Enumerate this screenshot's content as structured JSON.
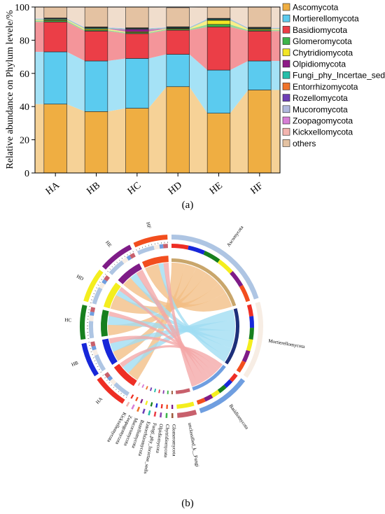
{
  "panel_a": {
    "label": "(a)"
  },
  "panel_b": {
    "label": "(b)"
  },
  "chart_data": [
    {
      "type": "bar",
      "stacked": true,
      "ylabel": "Relative  abundance on Phylum levele/%",
      "xlabel": "",
      "ylim": [
        0,
        100
      ],
      "yticks": [
        0,
        20,
        40,
        60,
        80,
        100
      ],
      "categories": [
        "HA",
        "HB",
        "HC",
        "HD",
        "HE",
        "HF"
      ],
      "legend_position": "right",
      "series": [
        {
          "name": "Ascomycota",
          "color": "#EFAE42",
          "values": [
            41.5,
            37.0,
            39.0,
            52.0,
            36.0,
            50.0
          ]
        },
        {
          "name": "Mortierellomycota",
          "color": "#5BCBEF",
          "values": [
            31.5,
            30.5,
            30.0,
            19.5,
            26.0,
            17.5
          ]
        },
        {
          "name": "Basidiomycota",
          "color": "#EB3E47",
          "values": [
            18.0,
            18.0,
            15.0,
            14.5,
            26.0,
            18.0
          ]
        },
        {
          "name": "Glomeromycota",
          "color": "#3DB54A",
          "values": [
            0.8,
            0.6,
            0.6,
            0.6,
            1.5,
            0.6
          ]
        },
        {
          "name": "Chytridiomycota",
          "color": "#F2E624",
          "values": [
            0.5,
            0.7,
            0.5,
            0.4,
            2.5,
            0.6
          ]
        },
        {
          "name": "Olpidiomycota",
          "color": "#8E1A86",
          "values": [
            0.1,
            0.2,
            1.5,
            0.2,
            0.2,
            0.2
          ]
        },
        {
          "name": "Fungi_phy_Incertae_sedis",
          "color": "#26BEA8",
          "values": [
            0.5,
            0.5,
            0.4,
            0.4,
            0.5,
            0.4
          ]
        },
        {
          "name": "Entorrhizomycota",
          "color": "#F0732A",
          "values": [
            0.1,
            0.1,
            0.1,
            0.1,
            0.1,
            0.1
          ]
        },
        {
          "name": "Rozellomycota",
          "color": "#6D3FB6",
          "values": [
            0.1,
            0.1,
            0.1,
            0.1,
            0.1,
            0.1
          ]
        },
        {
          "name": "Mucoromycota",
          "color": "#B0B8DE",
          "values": [
            0.1,
            0.1,
            0.1,
            0.1,
            0.1,
            0.1
          ]
        },
        {
          "name": "Zoopagomycota",
          "color": "#D77ED6",
          "values": [
            0.1,
            0.1,
            0.1,
            0.1,
            0.1,
            0.1
          ]
        },
        {
          "name": "Kickxellomycota",
          "color": "#F3B4AF",
          "values": [
            0.1,
            0.1,
            0.1,
            0.1,
            0.1,
            0.1
          ]
        },
        {
          "name": "others",
          "color": "#E4C2A2",
          "values": [
            6.6,
            12.0,
            12.5,
            11.5,
            6.8,
            12.3
          ]
        }
      ]
    },
    {
      "type": "chord",
      "samples": [
        "HA",
        "HB",
        "HC",
        "HD",
        "HE",
        "HF"
      ],
      "sample_colors": {
        "HA": "#EE2E24",
        "HB": "#1727D9",
        "HC": "#17801E",
        "HD": "#F4EE1E",
        "HE": "#7E1C87",
        "HF": "#F24E1E"
      },
      "phyla": [
        "Ascomycota",
        "Mortierellomycota",
        "Basidiomycota",
        "unclassified_k__Fungi",
        "Glomeromycota",
        "Chytridiomycota",
        "Olpidiomycota",
        "Fungi_phy_Incertae_sedis",
        "Entorrhizomycota",
        "Rozellomycota",
        "Mucoromycota",
        "Zoopagomycota",
        "Kickxellomycota"
      ],
      "phylum_colors": [
        "#AEC5E3",
        "#F7EDE4",
        "#6F9EE0",
        "#C8606C",
        "#9E5A3C",
        "#3DB54A",
        "#8B44B0",
        "#EB3E47",
        "#26BEA8",
        "#6D3FB6",
        "#F0732A",
        "#D77ED6",
        "#F3B4AF"
      ],
      "phylum_spans": [
        20,
        14,
        10,
        4,
        1,
        1,
        1,
        1,
        1,
        1,
        1,
        1,
        1
      ],
      "sample_spans": [
        8,
        8,
        8,
        8,
        8,
        8
      ],
      "links": [
        {
          "source": "HA",
          "target": "Ascomycota",
          "value": 3.5
        },
        {
          "source": "HA",
          "target": "Mortierellomycota",
          "value": 2.5
        },
        {
          "source": "HA",
          "target": "Basidiomycota",
          "value": 1.5
        },
        {
          "source": "HB",
          "target": "Ascomycota",
          "value": 3.0
        },
        {
          "source": "HB",
          "target": "Mortierellomycota",
          "value": 2.5
        },
        {
          "source": "HB",
          "target": "Basidiomycota",
          "value": 1.5
        },
        {
          "source": "HC",
          "target": "Ascomycota",
          "value": 3.0
        },
        {
          "source": "HC",
          "target": "Mortierellomycota",
          "value": 2.5
        },
        {
          "source": "HC",
          "target": "Basidiomycota",
          "value": 1.3
        },
        {
          "source": "HD",
          "target": "Ascomycota",
          "value": 4.2
        },
        {
          "source": "HD",
          "target": "Mortierellomycota",
          "value": 1.6
        },
        {
          "source": "HD",
          "target": "Basidiomycota",
          "value": 1.2
        },
        {
          "source": "HE",
          "target": "Ascomycota",
          "value": 2.9
        },
        {
          "source": "HE",
          "target": "Mortierellomycota",
          "value": 2.1
        },
        {
          "source": "HE",
          "target": "Basidiomycota",
          "value": 2.1
        },
        {
          "source": "HF",
          "target": "Ascomycota",
          "value": 4.0
        },
        {
          "source": "HF",
          "target": "Mortierellomycota",
          "value": 1.4
        },
        {
          "source": "HF",
          "target": "Basidiomycota",
          "value": 1.5
        }
      ]
    }
  ]
}
